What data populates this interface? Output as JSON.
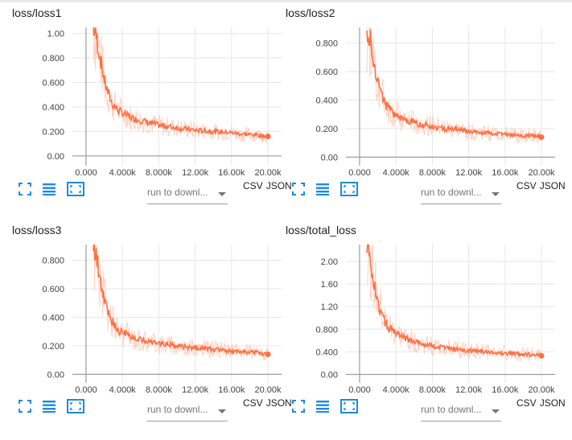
{
  "colors": {
    "series": "#ff7043",
    "series_raw": "#ffccbc",
    "axis": "#9e9e9e",
    "grid": "#e6e6e6",
    "icon": "#1e88e5"
  },
  "icons": [
    "fit-to-data-icon",
    "toggle-y-log-icon",
    "expand-chart-icon"
  ],
  "cards": [
    {
      "title": "loss/loss1",
      "run_placeholder": "run to downl...",
      "csv_label": "CSV",
      "json_label": "JSON",
      "chart_data": {
        "type": "line",
        "title": "loss/loss1",
        "xlim": [
          -1500,
          21500
        ],
        "ylim": [
          -0.08,
          1.05
        ],
        "xticks": [
          0,
          4000,
          8000,
          12000,
          16000,
          20000
        ],
        "xtick_labels": [
          "0.000",
          "4.000k",
          "8.000k",
          "12.00k",
          "16.00k",
          "20.00k"
        ],
        "yticks": [
          0,
          0.2,
          0.4,
          0.6,
          0.8,
          1.0
        ],
        "ytick_labels": [
          "0.00",
          "0.200",
          "0.400",
          "0.600",
          "0.800",
          "1.00"
        ],
        "grid": true,
        "x": [
          800,
          1200,
          1600,
          2000,
          2400,
          2800,
          3200,
          3600,
          4000,
          5000,
          6000,
          7000,
          8000,
          9000,
          10000,
          11000,
          12000,
          13000,
          14000,
          15000,
          16000,
          17000,
          18000,
          19000,
          20000
        ],
        "y": [
          1.05,
          0.95,
          0.78,
          0.62,
          0.52,
          0.44,
          0.4,
          0.37,
          0.35,
          0.31,
          0.29,
          0.27,
          0.25,
          0.24,
          0.23,
          0.22,
          0.21,
          0.205,
          0.2,
          0.195,
          0.19,
          0.18,
          0.175,
          0.17,
          0.16
        ]
      }
    },
    {
      "title": "loss/loss2",
      "run_placeholder": "run to downl...",
      "csv_label": "CSV",
      "json_label": "JSON",
      "chart_data": {
        "type": "line",
        "title": "loss/loss2",
        "xlim": [
          -1500,
          21500
        ],
        "ylim": [
          -0.06,
          0.91
        ],
        "xticks": [
          0,
          4000,
          8000,
          12000,
          16000,
          20000
        ],
        "xtick_labels": [
          "0.000",
          "4.000k",
          "8.000k",
          "12.00k",
          "16.00k",
          "20.00k"
        ],
        "yticks": [
          0,
          0.2,
          0.4,
          0.6,
          0.8
        ],
        "ytick_labels": [
          "0.00",
          "0.200",
          "0.400",
          "0.600",
          "0.800"
        ],
        "grid": true,
        "x": [
          800,
          1200,
          1600,
          2000,
          2400,
          2800,
          3200,
          3600,
          4000,
          5000,
          6000,
          7000,
          8000,
          9000,
          10000,
          11000,
          12000,
          13000,
          14000,
          15000,
          16000,
          17000,
          18000,
          19000,
          20000
        ],
        "y": [
          0.9,
          0.82,
          0.66,
          0.53,
          0.44,
          0.38,
          0.34,
          0.31,
          0.29,
          0.26,
          0.24,
          0.23,
          0.215,
          0.205,
          0.195,
          0.19,
          0.18,
          0.175,
          0.17,
          0.165,
          0.16,
          0.155,
          0.15,
          0.15,
          0.14
        ]
      }
    },
    {
      "title": "loss/loss3",
      "run_placeholder": "run to downl...",
      "csv_label": "CSV",
      "json_label": "JSON",
      "chart_data": {
        "type": "line",
        "title": "loss/loss3",
        "xlim": [
          -1500,
          21500
        ],
        "ylim": [
          -0.06,
          0.91
        ],
        "xticks": [
          0,
          4000,
          8000,
          12000,
          16000,
          20000
        ],
        "xtick_labels": [
          "0.000",
          "4.000k",
          "8.000k",
          "12.00k",
          "16.00k",
          "20.00k"
        ],
        "yticks": [
          0,
          0.2,
          0.4,
          0.6,
          0.8
        ],
        "ytick_labels": [
          "0.00",
          "0.200",
          "0.400",
          "0.600",
          "0.800"
        ],
        "grid": true,
        "x": [
          800,
          1200,
          1600,
          2000,
          2400,
          2800,
          3200,
          3600,
          4000,
          5000,
          6000,
          7000,
          8000,
          9000,
          10000,
          11000,
          12000,
          13000,
          14000,
          15000,
          16000,
          17000,
          18000,
          19000,
          20000
        ],
        "y": [
          0.9,
          0.8,
          0.64,
          0.52,
          0.44,
          0.38,
          0.34,
          0.31,
          0.29,
          0.26,
          0.245,
          0.23,
          0.22,
          0.21,
          0.2,
          0.19,
          0.185,
          0.18,
          0.175,
          0.17,
          0.165,
          0.16,
          0.155,
          0.15,
          0.14
        ]
      }
    },
    {
      "title": "loss/total_loss",
      "run_placeholder": "run to downl...",
      "csv_label": "CSV",
      "json_label": "JSON",
      "chart_data": {
        "type": "line",
        "title": "loss/total_loss",
        "xlim": [
          -1500,
          21500
        ],
        "ylim": [
          -0.15,
          2.3
        ],
        "xticks": [
          0,
          4000,
          8000,
          12000,
          16000,
          20000
        ],
        "xtick_labels": [
          "0.000",
          "4.000k",
          "8.000k",
          "12.00k",
          "16.00k",
          "20.00k"
        ],
        "yticks": [
          0,
          0.4,
          0.8,
          1.2,
          1.6,
          2.0
        ],
        "ytick_labels": [
          "0.00",
          "0.400",
          "0.800",
          "1.20",
          "1.60",
          "2.00"
        ],
        "grid": true,
        "x": [
          800,
          1200,
          1600,
          2000,
          2400,
          2800,
          3200,
          3600,
          4000,
          5000,
          6000,
          7000,
          8000,
          9000,
          10000,
          11000,
          12000,
          13000,
          14000,
          15000,
          16000,
          17000,
          18000,
          19000,
          20000
        ],
        "y": [
          2.3,
          2.0,
          1.6,
          1.3,
          1.08,
          0.94,
          0.84,
          0.78,
          0.72,
          0.64,
          0.58,
          0.54,
          0.5,
          0.48,
          0.46,
          0.44,
          0.42,
          0.41,
          0.4,
          0.39,
          0.38,
          0.37,
          0.36,
          0.35,
          0.33
        ]
      }
    }
  ]
}
